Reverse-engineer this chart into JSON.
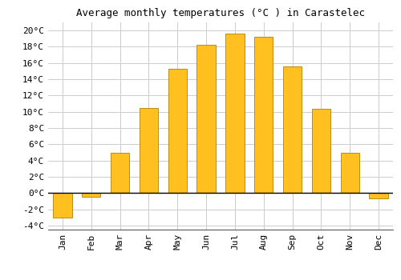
{
  "title": "Average monthly temperatures (°C ) in Carastelec",
  "months": [
    "Jan",
    "Feb",
    "Mar",
    "Apr",
    "May",
    "Jun",
    "Jul",
    "Aug",
    "Sep",
    "Oct",
    "Nov",
    "Dec"
  ],
  "values": [
    -3.0,
    -0.5,
    5.0,
    10.5,
    15.3,
    18.2,
    19.6,
    19.2,
    15.6,
    10.4,
    5.0,
    -0.7
  ],
  "bar_color": "#FFC020",
  "bar_edge_color": "#B08000",
  "ylim": [
    -4.5,
    21
  ],
  "yticks": [
    -4,
    -2,
    0,
    2,
    4,
    6,
    8,
    10,
    12,
    14,
    16,
    18,
    20
  ],
  "background_color": "#FFFFFF",
  "grid_color": "#CCCCCC",
  "title_fontsize": 9,
  "tick_fontsize": 8,
  "zero_line_color": "#000000",
  "bar_width": 0.65
}
